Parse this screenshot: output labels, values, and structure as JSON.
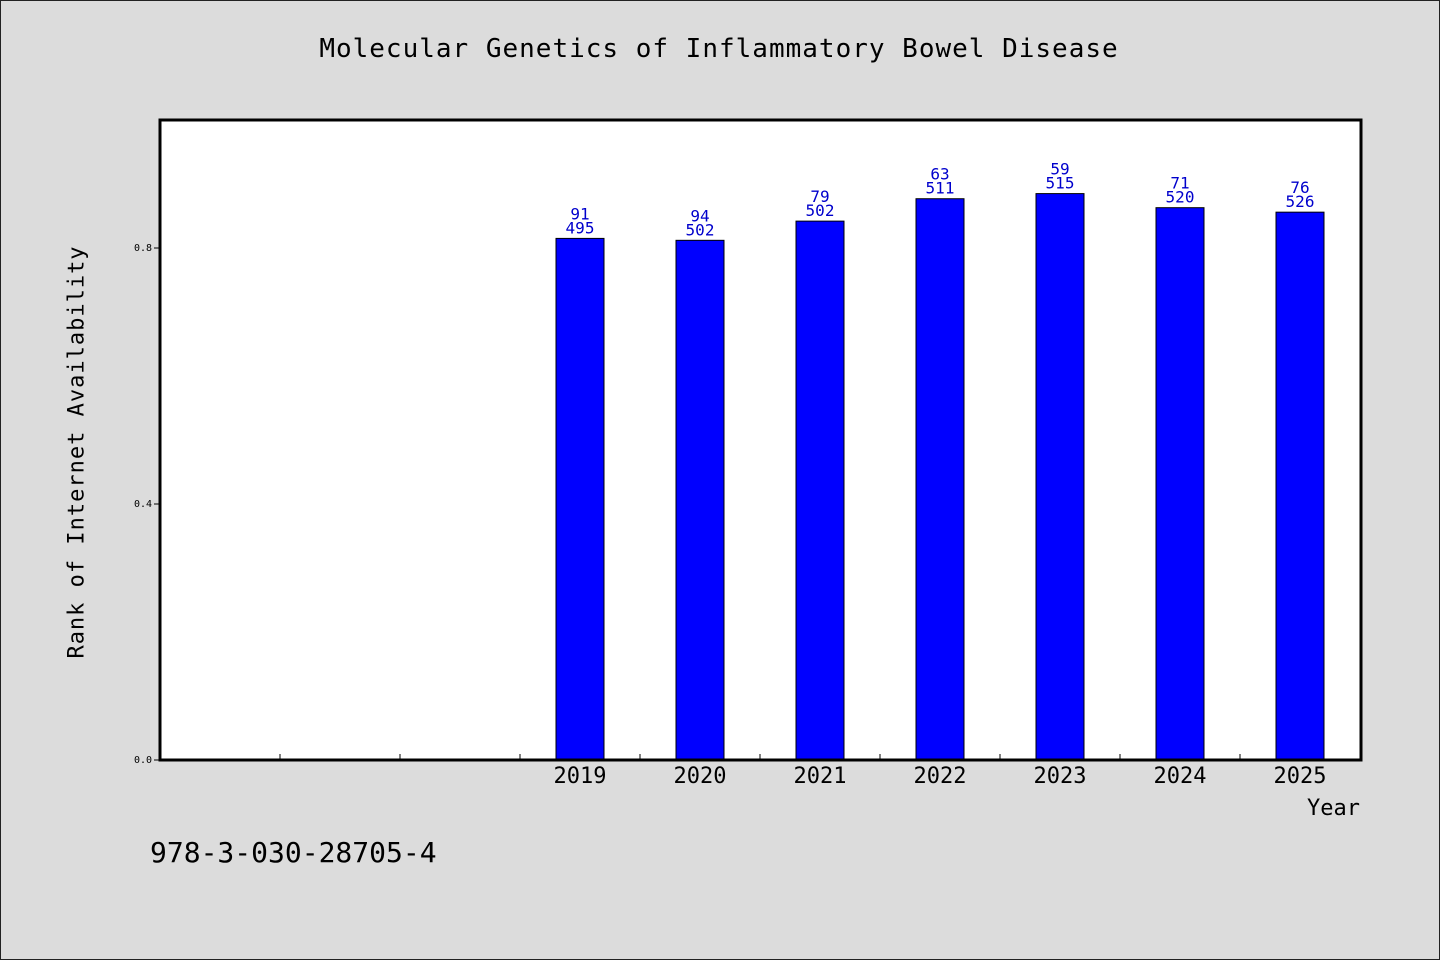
{
  "chart_data": {
    "type": "bar",
    "title": "Molecular Genetics of Inflammatory Bowel Disease",
    "xlabel": "Year",
    "ylabel": "Rank of Internet Availability",
    "ylim": [
      0,
      1.0
    ],
    "yticks": [
      "0.0",
      "0.4",
      "0.8"
    ],
    "categories": [
      "2019",
      "2020",
      "2021",
      "2022",
      "2023",
      "2024",
      "2025"
    ],
    "values": [
      0.815,
      0.812,
      0.842,
      0.877,
      0.885,
      0.863,
      0.856
    ],
    "label_top": [
      "91",
      "94",
      "79",
      "63",
      "59",
      "71",
      "76"
    ],
    "label_bottom": [
      "495",
      "502",
      "502",
      "511",
      "515",
      "520",
      "526"
    ],
    "bar_color": "#0000ff",
    "label_color": "#0000cc",
    "grid": false
  },
  "footer": {
    "isbn": "978-3-030-28705-4"
  }
}
